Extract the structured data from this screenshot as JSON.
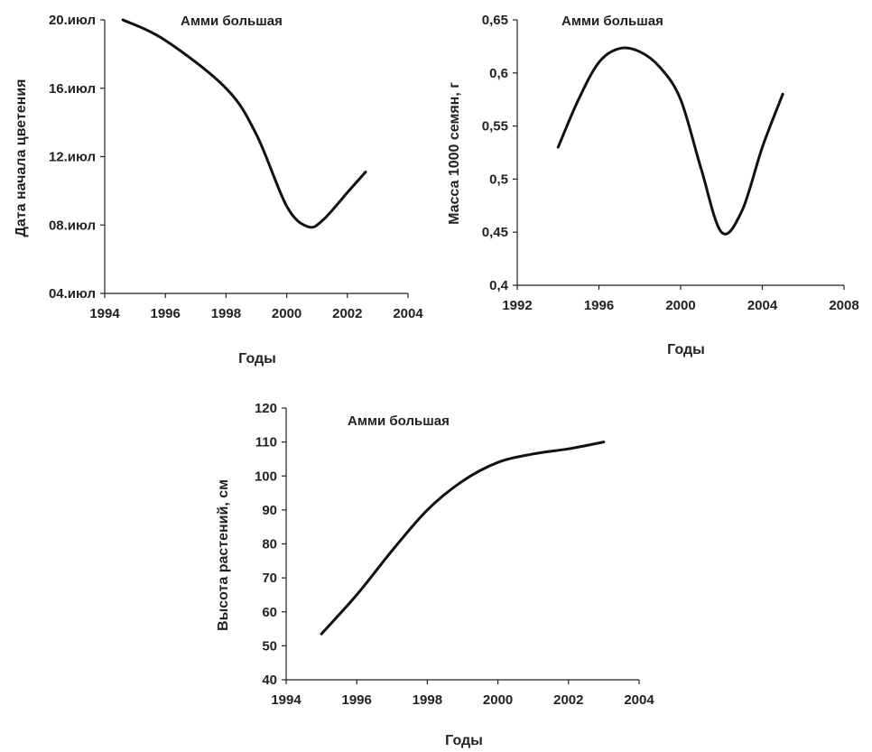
{
  "chart_data": [
    {
      "type": "line",
      "annotation": "Амми большая",
      "xlabel": "Годы",
      "ylabel": "Дата начала цветения",
      "x_ticks": [
        "1994",
        "1996",
        "1998",
        "2000",
        "2002",
        "2004"
      ],
      "y_ticks": [
        "04.июл",
        "08.июл",
        "12.июл",
        "16.июл",
        "20.июл"
      ],
      "xlim": [
        1994,
        2004
      ],
      "ylim": [
        4,
        20
      ],
      "y_unit": "day of July",
      "grid": false,
      "series": [
        {
          "x": [
            1994.6,
            1996,
            1998,
            1999,
            2000,
            2000.7,
            2001.2,
            2002,
            2002.6
          ],
          "y": [
            20,
            18.8,
            16,
            13.3,
            9.1,
            7.9,
            8.3,
            9.9,
            11.1
          ]
        }
      ]
    },
    {
      "type": "line",
      "annotation": "Амми большая",
      "xlabel": "Годы",
      "ylabel": "Масса 1000 семян, г",
      "x_ticks": [
        "1992",
        "1996",
        "2000",
        "2004",
        "2008"
      ],
      "y_ticks": [
        "0,4",
        "0,45",
        "0,5",
        "0,55",
        "0,6",
        "0,65"
      ],
      "xlim": [
        1992,
        2008
      ],
      "ylim": [
        0.4,
        0.65
      ],
      "grid": false,
      "series": [
        {
          "x": [
            1994,
            1995,
            1996,
            1997,
            1998,
            1999,
            2000,
            2001,
            2002,
            2003,
            2004,
            2005
          ],
          "y": [
            0.53,
            0.575,
            0.61,
            0.623,
            0.62,
            0.605,
            0.575,
            0.51,
            0.45,
            0.47,
            0.53,
            0.58
          ]
        }
      ]
    },
    {
      "type": "line",
      "annotation": "Амми большая",
      "xlabel": "Годы",
      "ylabel": "Высота растений, см",
      "x_ticks": [
        "1994",
        "1996",
        "1998",
        "2000",
        "2002",
        "2004"
      ],
      "y_ticks": [
        "40",
        "50",
        "60",
        "70",
        "80",
        "90",
        "100",
        "110",
        "120"
      ],
      "xlim": [
        1994,
        2004
      ],
      "ylim": [
        40,
        120
      ],
      "grid": false,
      "series": [
        {
          "x": [
            1995,
            1996,
            1997,
            1998,
            1999,
            2000,
            2001,
            2002,
            2003
          ],
          "y": [
            53.5,
            65,
            78,
            90,
            98.5,
            104,
            106.5,
            108,
            110
          ]
        }
      ]
    }
  ]
}
